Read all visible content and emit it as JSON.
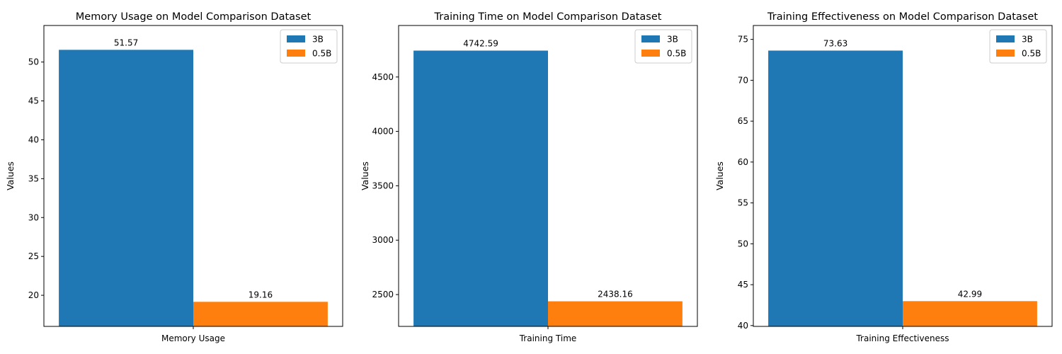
{
  "colors": {
    "series_0": "#1f77b4",
    "series_1": "#ff7f0e"
  },
  "chart_data": [
    {
      "type": "bar",
      "title": "Memory Usage on Model Comparison Dataset",
      "categories": [
        "Memory Usage"
      ],
      "ylabel": "Values",
      "xlabel": "",
      "ylim": [
        16.0,
        54.7
      ],
      "yticks": [
        20,
        25,
        30,
        35,
        40,
        45,
        50
      ],
      "series": [
        {
          "name": "3B",
          "values": [
            51.57
          ],
          "label": "51.57"
        },
        {
          "name": "0.5B",
          "values": [
            19.16
          ],
          "label": "19.16"
        }
      ],
      "legend": "top-right",
      "grid": false
    },
    {
      "type": "bar",
      "title": "Training Time on Model Comparison Dataset",
      "categories": [
        "Training Time"
      ],
      "ylabel": "Values",
      "xlabel": "",
      "ylim": [
        2207.5,
        4973.5
      ],
      "yticks": [
        2500,
        3000,
        3500,
        4000,
        4500
      ],
      "series": [
        {
          "name": "3B",
          "values": [
            4742.59
          ],
          "label": "4742.59"
        },
        {
          "name": "0.5B",
          "values": [
            2438.16
          ],
          "label": "2438.16"
        }
      ],
      "legend": "top-right",
      "grid": false
    },
    {
      "type": "bar",
      "title": "Training Effectiveness on Model Comparison Dataset",
      "categories": [
        "Training Effectiveness"
      ],
      "ylabel": "Values",
      "xlabel": "",
      "ylim": [
        39.9,
        76.7
      ],
      "yticks": [
        40,
        45,
        50,
        55,
        60,
        65,
        70,
        75
      ],
      "series": [
        {
          "name": "3B",
          "values": [
            73.63
          ],
          "label": "73.63"
        },
        {
          "name": "0.5B",
          "values": [
            42.99
          ],
          "label": "42.99"
        }
      ],
      "legend": "top-right",
      "grid": false
    }
  ]
}
